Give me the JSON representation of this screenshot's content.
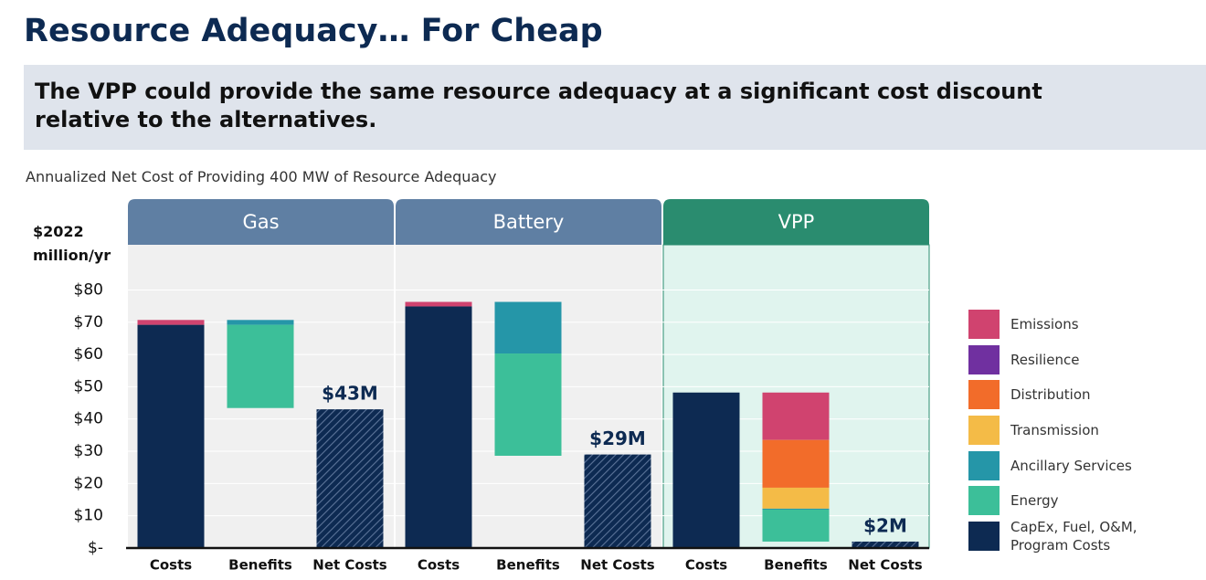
{
  "title": "Resource Adequacy… For Cheap",
  "subtitle": "The VPP could provide the same resource adequacy at a significant cost discount relative to the alternatives.",
  "chart_data": {
    "type": "waterfall",
    "title": "Annualized Net Cost of Providing 400 MW of Resource Adequacy",
    "y_label": "$2022 million/yr",
    "ylim": [
      0,
      94
    ],
    "yticks": [
      {
        "value": 0,
        "label": "$-"
      },
      {
        "value": 10,
        "label": "$10"
      },
      {
        "value": 20,
        "label": "$20"
      },
      {
        "value": 30,
        "label": "$30"
      },
      {
        "value": 40,
        "label": "$40"
      },
      {
        "value": 50,
        "label": "$50"
      },
      {
        "value": 60,
        "label": "$60"
      },
      {
        "value": 70,
        "label": "$70"
      },
      {
        "value": 80,
        "label": "$80"
      }
    ],
    "grid": true,
    "groups": [
      {
        "name": "Gas",
        "color": "#5f7fa3",
        "categories": [
          "Costs",
          "Benefits",
          "Net Costs"
        ]
      },
      {
        "name": "Battery",
        "color": "#5f7fa3",
        "categories": [
          "Costs",
          "Benefits",
          "Net Costs"
        ]
      },
      {
        "name": "VPP",
        "color": "#2a8c6f",
        "categories": [
          "Costs",
          "Benefits",
          "Net Costs"
        ]
      }
    ],
    "series": [
      {
        "name": "Emissions",
        "color": "#d0436f",
        "costs": [
          1.5,
          1.4,
          null
        ],
        "benefits": [
          null,
          null,
          14.7
        ]
      },
      {
        "name": "Resilience",
        "color": "#7030a0",
        "costs": [
          null,
          null,
          null
        ],
        "benefits": [
          null,
          null,
          null
        ]
      },
      {
        "name": "Distribution",
        "color": "#f26c2a",
        "costs": [
          null,
          null,
          null
        ],
        "benefits": [
          null,
          null,
          14.8
        ]
      },
      {
        "name": "Transmission",
        "color": "#f4bb47",
        "costs": [
          null,
          null,
          null
        ],
        "benefits": [
          null,
          null,
          6.5
        ]
      },
      {
        "name": "Ancillary Services",
        "color": "#2596a8",
        "costs": [
          null,
          null,
          null
        ],
        "benefits": [
          1.5,
          16,
          0.3
        ]
      },
      {
        "name": "Energy",
        "color": "#3cbf99",
        "costs": [
          null,
          null,
          null
        ],
        "benefits": [
          25.8,
          31.7,
          9.9
        ]
      },
      {
        "name": "CapEx, Fuel, O&M, Program Costs",
        "color": "#0d2a52",
        "costs": [
          69.2,
          74.9,
          48.2
        ],
        "benefits": [
          null,
          null,
          null
        ]
      }
    ],
    "net_costs": {
      "values": [
        43,
        29,
        2
      ],
      "value_labels": [
        "$43M",
        "$29M",
        "$2M"
      ]
    }
  }
}
